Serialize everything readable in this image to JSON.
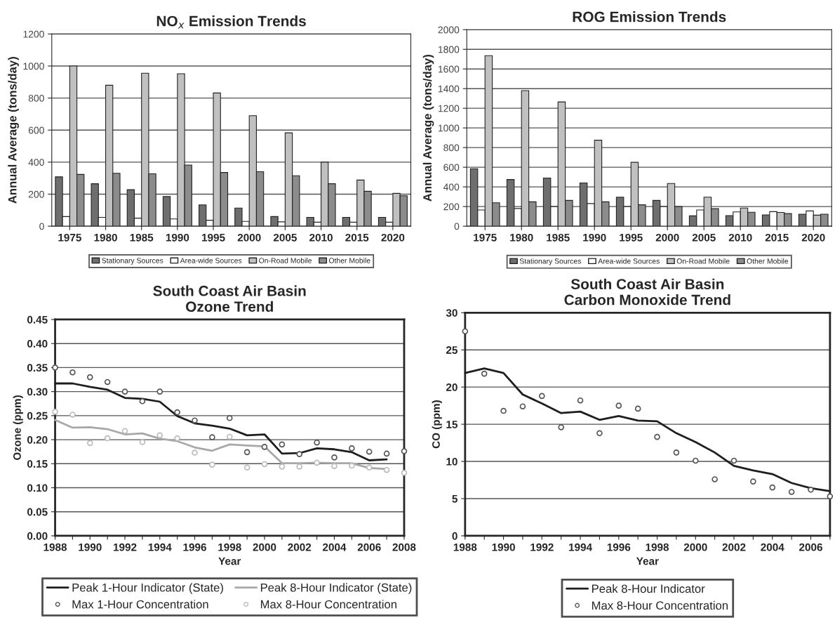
{
  "chart_data": [
    {
      "type": "bar",
      "title": "NO$_{x}$ Emission Trends",
      "ylabel": "Annual Average (tons/day)",
      "categories": [
        "1975",
        "1980",
        "1985",
        "1990",
        "1995",
        "2000",
        "2005",
        "2010",
        "2015",
        "2020"
      ],
      "series": [
        {
          "name": "Stationary Sources",
          "color": "#6e6e6e",
          "values": [
            308,
            265,
            228,
            185,
            133,
            113,
            60,
            55,
            55,
            55
          ]
        },
        {
          "name": "Area-wide Sources",
          "color": "#ffffff",
          "values": [
            60,
            55,
            50,
            45,
            37,
            30,
            27,
            25,
            25,
            25
          ]
        },
        {
          "name": "On-Road Mobile",
          "color": "#c0c0c0",
          "values": [
            1000,
            880,
            955,
            952,
            832,
            690,
            583,
            400,
            288,
            205
          ]
        },
        {
          "name": "Other Mobile",
          "color": "#8c8c8c",
          "values": [
            323,
            330,
            327,
            382,
            335,
            340,
            315,
            265,
            218,
            190
          ]
        }
      ],
      "ylim": [
        0,
        1200
      ],
      "yticks": [
        0,
        200,
        400,
        600,
        800,
        1000,
        1200
      ],
      "grid": "y",
      "legend": "bottom"
    },
    {
      "type": "bar",
      "title": "ROG Emission Trends",
      "ylabel": "Annual Average (tons/day)",
      "categories": [
        "1975",
        "1980",
        "1985",
        "1990",
        "1995",
        "2000",
        "2005",
        "2010",
        "2015",
        "2020"
      ],
      "series": [
        {
          "name": "Stationary Sources",
          "color": "#6e6e6e",
          "values": [
            585,
            475,
            490,
            440,
            295,
            262,
            105,
            108,
            115,
            122
          ]
        },
        {
          "name": "Area-wide Sources",
          "color": "#ffffff",
          "values": [
            165,
            180,
            200,
            230,
            200,
            200,
            165,
            145,
            148,
            155
          ]
        },
        {
          "name": "On-Road Mobile",
          "color": "#c0c0c0",
          "values": [
            1735,
            1380,
            1265,
            875,
            650,
            435,
            295,
            185,
            140,
            112
          ]
        },
        {
          "name": "Other Mobile",
          "color": "#8c8c8c",
          "values": [
            238,
            248,
            262,
            248,
            218,
            200,
            178,
            142,
            128,
            122
          ]
        }
      ],
      "ylim": [
        0,
        2000
      ],
      "yticks": [
        0,
        200,
        400,
        600,
        800,
        1000,
        1200,
        1400,
        1600,
        1800,
        2000
      ],
      "grid": "y",
      "legend": "bottom"
    },
    {
      "type": "line",
      "title": "South Coast Air Basin\nOzone Trend",
      "xlabel": "Year",
      "ylabel": "Ozone (ppm)",
      "series": [
        {
          "name": "Peak 1-Hour Indicator (State)",
          "type": "line",
          "marker": "none",
          "color": "#1e1e1e",
          "x": [
            1988,
            1989,
            1990,
            1991,
            1992,
            1993,
            1994,
            1995,
            1996,
            1997,
            1998,
            1999,
            2000,
            2001,
            2002,
            2003,
            2004,
            2005,
            2006,
            2007
          ],
          "values": [
            0.317,
            0.317,
            0.31,
            0.304,
            0.287,
            0.285,
            0.279,
            0.249,
            0.234,
            0.229,
            0.223,
            0.209,
            0.211,
            0.171,
            0.172,
            0.182,
            0.18,
            0.174,
            0.157,
            0.159
          ]
        },
        {
          "name": "Peak 8-Hour Indicator (State)",
          "type": "line",
          "marker": "none",
          "color": "#a8a8a8",
          "x": [
            1988,
            1989,
            1990,
            1991,
            1992,
            1993,
            1994,
            1995,
            1996,
            1997,
            1998,
            1999,
            2000,
            2001,
            2002,
            2003,
            2004,
            2005,
            2006,
            2007
          ],
          "values": [
            0.241,
            0.225,
            0.226,
            0.222,
            0.211,
            0.213,
            0.202,
            0.197,
            0.184,
            0.177,
            0.19,
            0.188,
            0.186,
            0.151,
            0.151,
            0.152,
            0.151,
            0.151,
            0.141,
            0.139
          ]
        },
        {
          "name": "Max 1-Hour Concentration",
          "type": "scatter",
          "marker": "circle",
          "color": "#555555",
          "x": [
            1988,
            1989,
            1990,
            1991,
            1992,
            1993,
            1994,
            1995,
            1996,
            1997,
            1998,
            1999,
            2000,
            2001,
            2002,
            2003,
            2004,
            2005,
            2006,
            2007,
            2008
          ],
          "values": [
            0.35,
            0.34,
            0.33,
            0.32,
            0.3,
            0.28,
            0.3,
            0.257,
            0.24,
            0.205,
            0.245,
            0.174,
            0.185,
            0.19,
            0.17,
            0.194,
            0.163,
            0.182,
            0.175,
            0.171,
            0.176
          ]
        },
        {
          "name": "Max 8-Hour Concentration",
          "type": "scatter",
          "marker": "circle",
          "color": "#bbbbbb",
          "x": [
            1988,
            1989,
            1990,
            1991,
            1992,
            1993,
            1994,
            1995,
            1996,
            1997,
            1998,
            1999,
            2000,
            2001,
            2002,
            2003,
            2004,
            2005,
            2006,
            2007,
            2008
          ],
          "values": [
            0.258,
            0.252,
            0.193,
            0.203,
            0.218,
            0.195,
            0.209,
            0.203,
            0.173,
            0.148,
            0.206,
            0.142,
            0.149,
            0.144,
            0.144,
            0.152,
            0.145,
            0.146,
            0.142,
            0.137,
            0.131
          ]
        }
      ],
      "xlim": [
        1988,
        2008
      ],
      "xticks": [
        1988,
        {
          "value": 1989,
          "label": null
        },
        1990,
        {
          "value": 1991,
          "label": null
        },
        1992,
        {
          "value": 1993,
          "label": null
        },
        1994,
        {
          "value": 1995,
          "label": null
        },
        1996,
        {
          "value": 1997,
          "label": null
        },
        1998,
        {
          "value": 1999,
          "label": null
        },
        2000,
        {
          "value": 2001,
          "label": null
        },
        2002,
        {
          "value": 2003,
          "label": null
        },
        2004,
        {
          "value": 2005,
          "label": null
        },
        2006,
        {
          "value": 2007,
          "label": null
        },
        2008
      ],
      "ylim": [
        0,
        0.45
      ],
      "yticks": [
        {
          "value": 0,
          "label": "0.00"
        },
        {
          "value": 0.05,
          "label": "0.05"
        },
        {
          "value": 0.1,
          "label": "0.10"
        },
        {
          "value": 0.15,
          "label": "0.15"
        },
        {
          "value": 0.2,
          "label": "0.20"
        },
        {
          "value": 0.25,
          "label": "0.25"
        },
        {
          "value": 0.3,
          "label": "0.30"
        },
        {
          "value": 0.35,
          "label": "0.35"
        },
        {
          "value": 0.4,
          "label": "0.40"
        },
        {
          "value": 0.45,
          "label": "0.45"
        }
      ],
      "grid": "y",
      "legend": "bottom"
    },
    {
      "type": "line",
      "title": "South Coast Air Basin\nCarbon Monoxide Trend",
      "xlabel": "Year",
      "ylabel": "CO (ppm)",
      "series": [
        {
          "name": "Peak 8-Hour Indicator",
          "type": "line",
          "marker": "none",
          "color": "#1e1e1e",
          "x": [
            1988,
            1989,
            1990,
            1991,
            1992,
            1993,
            1994,
            1995,
            1996,
            1997,
            1998,
            1999,
            2000,
            2001,
            2002,
            2003,
            2004,
            2005,
            2006,
            2007
          ],
          "values": [
            21.9,
            22.5,
            21.9,
            19.0,
            17.8,
            16.5,
            16.7,
            15.6,
            16.1,
            15.5,
            15.4,
            13.8,
            12.6,
            11.2,
            9.4,
            8.8,
            8.3,
            7.1,
            6.4,
            6.0
          ]
        },
        {
          "name": "Max 8-Hour Concentration",
          "type": "scatter",
          "marker": "circle",
          "color": "#555555",
          "x": [
            1988,
            1989,
            1990,
            1991,
            1992,
            1993,
            1994,
            1995,
            1996,
            1997,
            1998,
            1999,
            2000,
            2001,
            2002,
            2003,
            2004,
            2005,
            2006,
            2007
          ],
          "values": [
            27.5,
            21.8,
            16.8,
            17.4,
            18.8,
            14.6,
            18.2,
            13.8,
            17.5,
            17.1,
            13.3,
            11.2,
            10.1,
            7.6,
            10.1,
            7.3,
            6.5,
            5.9,
            6.2,
            5.3
          ]
        }
      ],
      "xlim": [
        1988,
        2007
      ],
      "xticks": [
        1988,
        {
          "value": 1989,
          "label": null
        },
        1990,
        {
          "value": 1991,
          "label": null
        },
        1992,
        {
          "value": 1993,
          "label": null
        },
        1994,
        {
          "value": 1995,
          "label": null
        },
        1996,
        {
          "value": 1997,
          "label": null
        },
        1998,
        {
          "value": 1999,
          "label": null
        },
        2000,
        {
          "value": 2001,
          "label": null
        },
        2002,
        {
          "value": 2003,
          "label": null
        },
        2004,
        {
          "value": 2005,
          "label": null
        },
        2006,
        {
          "value": 2007,
          "label": null
        }
      ],
      "ylim": [
        0,
        30
      ],
      "yticks": [
        0,
        5,
        10,
        15,
        20,
        25,
        30
      ],
      "grid": "y",
      "legend": "bottom"
    }
  ]
}
